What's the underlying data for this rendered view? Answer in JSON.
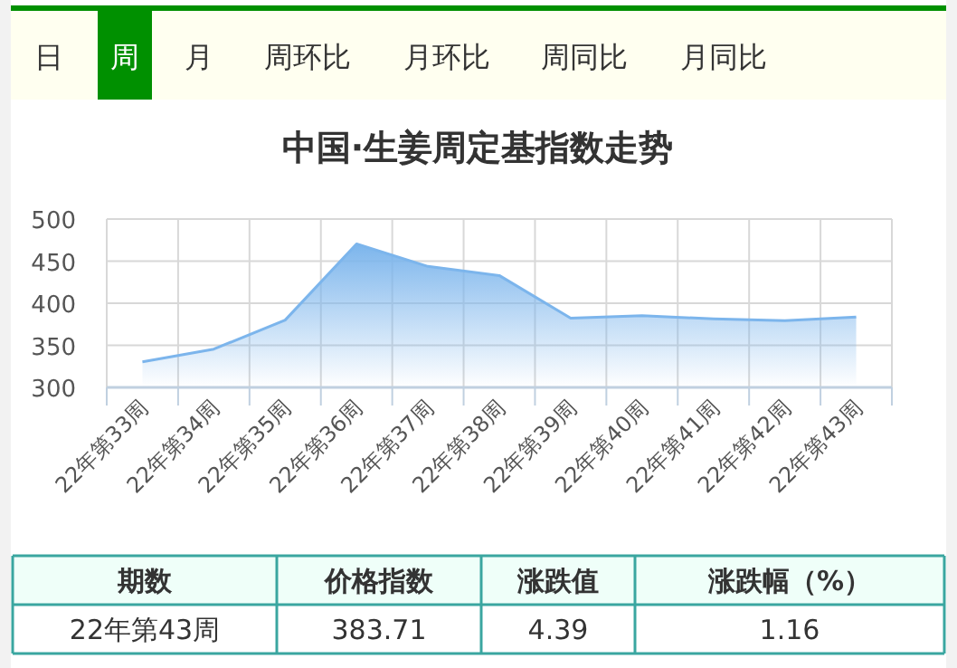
{
  "chart_data": {
    "type": "area",
    "title": "中国·生姜周定基指数走势",
    "categories": [
      "22年第33周",
      "22年第34周",
      "22年第35周",
      "22年第36周",
      "22年第37周",
      "22年第38周",
      "22年第39周",
      "22年第40周",
      "22年第41周",
      "22年第42周",
      "22年第43周"
    ],
    "values": [
      330.3,
      345.5,
      380,
      470.4,
      443.7,
      432.9,
      382.3,
      385.2,
      381.5,
      379.32,
      383.71
    ],
    "color": "#7cb5ec",
    "ylim": [
      300,
      500
    ],
    "yticks": [
      300,
      350,
      400,
      450,
      500
    ],
    "grid": true,
    "marker": "none",
    "annotations": [
      "日",
      "周",
      "月",
      "周环比",
      "月环比",
      "周同比",
      "月同比",
      "期数",
      "价格指数",
      "涨跌值",
      "涨跌幅（%）",
      "22年第43周",
      "383.71",
      "4.39",
      "1.16"
    ]
  }
}
